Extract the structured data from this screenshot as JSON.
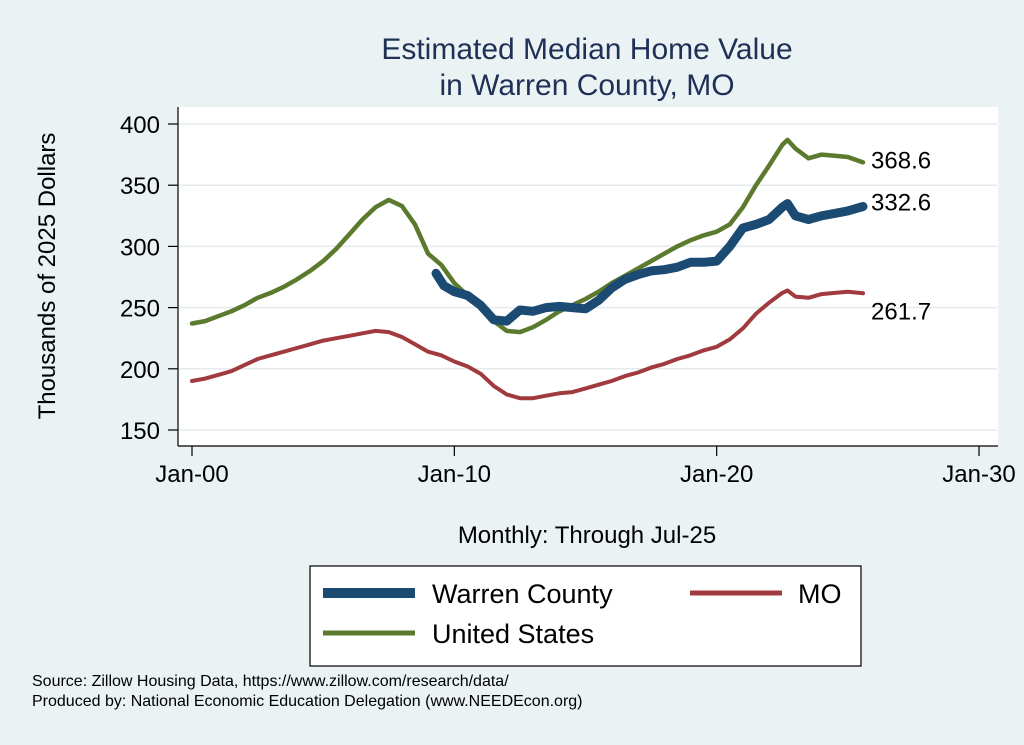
{
  "chart_data": {
    "type": "line",
    "title": [
      "Estimated Median Home Value",
      "in Warren County, MO"
    ],
    "ylabel": "Thousands of 2025 Dollars",
    "xlabel": "Monthly: Through Jul-25",
    "ylim": [
      140,
      410
    ],
    "yticks": [
      150,
      200,
      250,
      300,
      350,
      400
    ],
    "xlim": [
      2000,
      2030
    ],
    "xticks": [
      {
        "x": 2000,
        "label": "Jan-00"
      },
      {
        "x": 2010,
        "label": "Jan-10"
      },
      {
        "x": 2020,
        "label": "Jan-20"
      },
      {
        "x": 2030,
        "label": "Jan-30"
      }
    ],
    "grid": true,
    "series": [
      {
        "name": "United States",
        "color": "#5b7a2e",
        "end_label": "368.6",
        "points": [
          [
            2000.0,
            237
          ],
          [
            2000.5,
            239
          ],
          [
            2001.0,
            243
          ],
          [
            2001.5,
            247
          ],
          [
            2002.0,
            252
          ],
          [
            2002.5,
            258
          ],
          [
            2003.0,
            262
          ],
          [
            2003.5,
            267
          ],
          [
            2004.0,
            273
          ],
          [
            2004.5,
            280
          ],
          [
            2005.0,
            288
          ],
          [
            2005.5,
            298
          ],
          [
            2006.0,
            310
          ],
          [
            2006.5,
            322
          ],
          [
            2007.0,
            332
          ],
          [
            2007.5,
            338
          ],
          [
            2008.0,
            333
          ],
          [
            2008.5,
            318
          ],
          [
            2009.0,
            294
          ],
          [
            2009.5,
            285
          ],
          [
            2010.0,
            270
          ],
          [
            2010.5,
            260
          ],
          [
            2011.0,
            250
          ],
          [
            2011.5,
            239
          ],
          [
            2012.0,
            231
          ],
          [
            2012.5,
            230
          ],
          [
            2013.0,
            234
          ],
          [
            2013.5,
            240
          ],
          [
            2014.0,
            247
          ],
          [
            2014.5,
            252
          ],
          [
            2015.0,
            257
          ],
          [
            2015.5,
            263
          ],
          [
            2016.0,
            270
          ],
          [
            2016.5,
            276
          ],
          [
            2017.0,
            282
          ],
          [
            2017.5,
            288
          ],
          [
            2018.0,
            294
          ],
          [
            2018.5,
            300
          ],
          [
            2019.0,
            305
          ],
          [
            2019.5,
            309
          ],
          [
            2020.0,
            312
          ],
          [
            2020.5,
            318
          ],
          [
            2021.0,
            332
          ],
          [
            2021.5,
            350
          ],
          [
            2022.0,
            366
          ],
          [
            2022.5,
            383
          ],
          [
            2022.7,
            387
          ],
          [
            2023.0,
            380
          ],
          [
            2023.5,
            372
          ],
          [
            2024.0,
            375
          ],
          [
            2024.5,
            374
          ],
          [
            2025.0,
            373
          ],
          [
            2025.58,
            368.6
          ]
        ]
      },
      {
        "name": "MO",
        "color": "#a03a3e",
        "end_label": "261.7",
        "points": [
          [
            2000.0,
            190
          ],
          [
            2000.5,
            192
          ],
          [
            2001.0,
            195
          ],
          [
            2001.5,
            198
          ],
          [
            2002.0,
            203
          ],
          [
            2002.5,
            208
          ],
          [
            2003.0,
            211
          ],
          [
            2003.5,
            214
          ],
          [
            2004.0,
            217
          ],
          [
            2004.5,
            220
          ],
          [
            2005.0,
            223
          ],
          [
            2005.5,
            225
          ],
          [
            2006.0,
            227
          ],
          [
            2006.5,
            229
          ],
          [
            2007.0,
            231
          ],
          [
            2007.5,
            230
          ],
          [
            2008.0,
            226
          ],
          [
            2008.5,
            220
          ],
          [
            2009.0,
            214
          ],
          [
            2009.5,
            211
          ],
          [
            2010.0,
            206
          ],
          [
            2010.5,
            202
          ],
          [
            2011.0,
            196
          ],
          [
            2011.5,
            186
          ],
          [
            2012.0,
            179
          ],
          [
            2012.5,
            176
          ],
          [
            2013.0,
            176
          ],
          [
            2013.5,
            178
          ],
          [
            2014.0,
            180
          ],
          [
            2014.5,
            181
          ],
          [
            2015.0,
            184
          ],
          [
            2015.5,
            187
          ],
          [
            2016.0,
            190
          ],
          [
            2016.5,
            194
          ],
          [
            2017.0,
            197
          ],
          [
            2017.5,
            201
          ],
          [
            2018.0,
            204
          ],
          [
            2018.5,
            208
          ],
          [
            2019.0,
            211
          ],
          [
            2019.5,
            215
          ],
          [
            2020.0,
            218
          ],
          [
            2020.5,
            224
          ],
          [
            2021.0,
            233
          ],
          [
            2021.5,
            245
          ],
          [
            2022.0,
            254
          ],
          [
            2022.5,
            262
          ],
          [
            2022.7,
            264
          ],
          [
            2023.0,
            259
          ],
          [
            2023.5,
            258
          ],
          [
            2024.0,
            261
          ],
          [
            2024.5,
            262
          ],
          [
            2025.0,
            263
          ],
          [
            2025.58,
            261.7
          ]
        ]
      },
      {
        "name": "Warren County",
        "color": "#1b4a73",
        "end_label": "332.6",
        "points": [
          [
            2009.3,
            278
          ],
          [
            2009.6,
            268
          ],
          [
            2010.0,
            263
          ],
          [
            2010.5,
            260
          ],
          [
            2011.0,
            252
          ],
          [
            2011.5,
            240
          ],
          [
            2012.0,
            239
          ],
          [
            2012.5,
            248
          ],
          [
            2013.0,
            247
          ],
          [
            2013.5,
            250
          ],
          [
            2014.0,
            251
          ],
          [
            2014.5,
            250
          ],
          [
            2015.0,
            249
          ],
          [
            2015.5,
            256
          ],
          [
            2016.0,
            266
          ],
          [
            2016.5,
            273
          ],
          [
            2017.0,
            277
          ],
          [
            2017.5,
            280
          ],
          [
            2018.0,
            281
          ],
          [
            2018.5,
            283
          ],
          [
            2019.0,
            287
          ],
          [
            2019.5,
            287
          ],
          [
            2020.0,
            288
          ],
          [
            2020.5,
            300
          ],
          [
            2021.0,
            315
          ],
          [
            2021.5,
            318
          ],
          [
            2022.0,
            322
          ],
          [
            2022.5,
            332
          ],
          [
            2022.7,
            335
          ],
          [
            2023.0,
            325
          ],
          [
            2023.5,
            322
          ],
          [
            2024.0,
            325
          ],
          [
            2024.5,
            327
          ],
          [
            2025.0,
            329
          ],
          [
            2025.58,
            332.6
          ]
        ]
      }
    ],
    "legend": [
      {
        "name": "Warren County",
        "color": "#1b4a73"
      },
      {
        "name": "MO",
        "color": "#a03a3e"
      },
      {
        "name": "United States",
        "color": "#5b7a2e"
      }
    ]
  },
  "source_line": "Source: Zillow Housing Data, https://www.zillow.com/research/data/",
  "produced_line": "Produced by: National Economic Education Delegation (www.NEEDEcon.org)"
}
